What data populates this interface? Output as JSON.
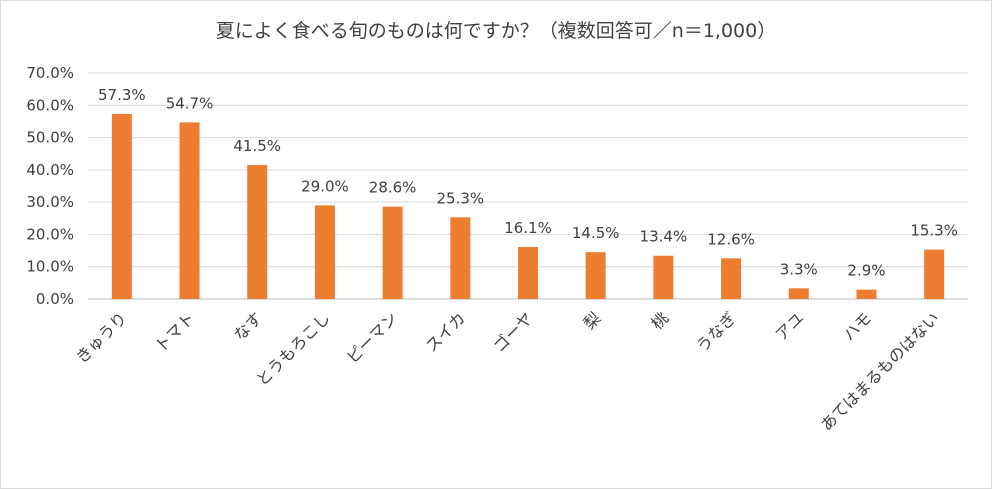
{
  "chart_data": {
    "type": "bar",
    "title": "夏によく食べる旬のものは何ですか？（複数回答可／n＝1,000）",
    "categories": [
      "きゅうり",
      "トマト",
      "なす",
      "とうもろこし",
      "ピーマン",
      "スイカ",
      "ゴーヤ",
      "梨",
      "桃",
      "うなぎ",
      "アユ",
      "ハモ",
      "あてはまるものはない"
    ],
    "values": [
      57.3,
      54.7,
      41.5,
      29.0,
      28.6,
      25.3,
      16.1,
      14.5,
      13.4,
      12.6,
      3.3,
      2.9,
      15.3
    ],
    "value_labels": [
      "57.3%",
      "54.7%",
      "41.5%",
      "29.0%",
      "28.6%",
      "25.3%",
      "16.1%",
      "14.5%",
      "13.4%",
      "12.6%",
      "3.3%",
      "2.9%",
      "15.3%"
    ],
    "y_ticks": [
      "0.0%",
      "10.0%",
      "20.0%",
      "30.0%",
      "40.0%",
      "50.0%",
      "60.0%",
      "70.0%"
    ],
    "xlabel": "",
    "ylabel": "",
    "ylim": [
      0,
      70
    ],
    "grid": true,
    "bar_color": "#ed7d31"
  }
}
